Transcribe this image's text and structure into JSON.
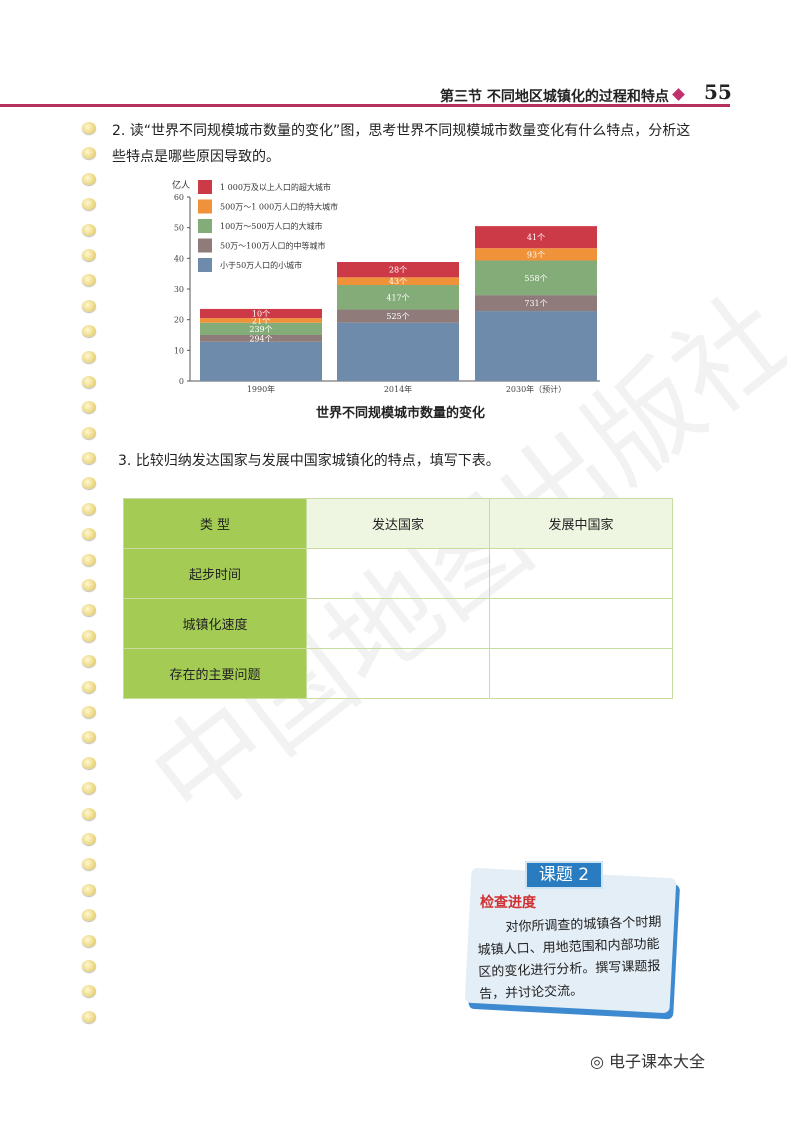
{
  "header": {
    "section": "第三节  不同地区城镇化的过程和特点",
    "page_number": "55"
  },
  "question2": "2. 读“世界不同规模城市数量的变化”图，思考世界不同规模城市数量变化有什么特点，分析这些特点是哪些原因导致的。",
  "question3": "3. 比较归纳发达国家与发展中国家城镇化的特点，填写下表。",
  "chart_data": {
    "type": "bar",
    "stacked": true,
    "title": "世界不同规模城市数量的变化",
    "ylabel": "亿人",
    "ylim": [
      0,
      60
    ],
    "yticks": [
      0,
      10,
      20,
      30,
      40,
      50,
      60
    ],
    "categories": [
      "1990年",
      "2014年",
      "2030年（预计）"
    ],
    "legend_position": "top-left",
    "series": [
      {
        "name": "小于50万人口的小城市",
        "color": "#6f8bab",
        "values": [
          12.8,
          19,
          22.8
        ],
        "labels": [
          "",
          "",
          ""
        ]
      },
      {
        "name": "50万～100万人口的中等城市",
        "color": "#8e7b7a",
        "values": [
          2.2,
          4.3,
          5.2
        ],
        "labels": [
          "294个",
          "525个",
          "731个"
        ]
      },
      {
        "name": "100万～500万人口的大城市",
        "color": "#84ac78",
        "values": [
          4,
          8,
          11.3
        ],
        "labels": [
          "239个",
          "417个",
          "558个"
        ]
      },
      {
        "name": "500万～1 000万人口的特大城市",
        "color": "#f0923a",
        "values": [
          1.5,
          2.5,
          4
        ],
        "labels": [
          "21个",
          "43个",
          "93个"
        ]
      },
      {
        "name": "1 000万及以上人口的超大城市",
        "color": "#cc3a48",
        "values": [
          3,
          5,
          7.2
        ],
        "labels": [
          "10个",
          "28个",
          "41个"
        ]
      }
    ]
  },
  "table": {
    "headers": [
      "类  型",
      "发达国家",
      "发展中国家"
    ],
    "rows": [
      "起步时间",
      "城镇化速度",
      "存在的主要问题"
    ]
  },
  "project": {
    "tag": "课题 2",
    "heading": "检查进度",
    "text": "对你所调查的城镇各个时期城镇人口、用地范围和内部功能区的变化进行分析。撰写课题报告，并讨论交流。"
  },
  "watermark": {
    "publisher": "中国地图出版社",
    "account": "电子课本大全"
  }
}
